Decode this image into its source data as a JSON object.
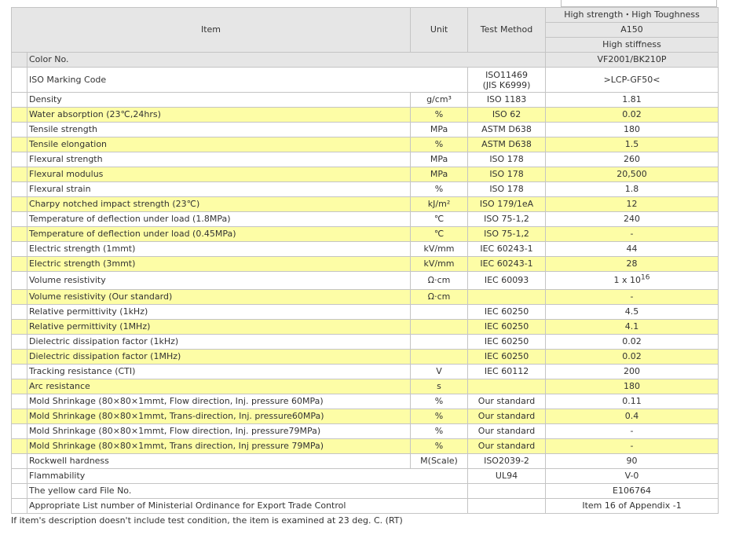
{
  "header": {
    "item": "Item",
    "unit": "Unit",
    "test_method": "Test Method",
    "grade_line1": "High strength・High Toughness",
    "grade_line2": "A150",
    "grade_line3": "High stiffness"
  },
  "color_row": {
    "label": "Color No.",
    "value": "VF2001/BK210P"
  },
  "iso_row": {
    "label": "ISO Marking Code",
    "method_line1": "ISO11469",
    "method_line2": "(JIS K6999)",
    "value": ">LCP-GF50<"
  },
  "rows": [
    {
      "label": "Density",
      "unit": "g/cm³",
      "method": "ISO 1183",
      "value": "1.81",
      "highlight": false
    },
    {
      "label": "Water absorption (23℃,24hrs)",
      "unit": "%",
      "method": "ISO 62",
      "value": "0.02",
      "highlight": true
    },
    {
      "label": "Tensile strength",
      "unit": "MPa",
      "method": "ASTM D638",
      "value": "180",
      "highlight": false
    },
    {
      "label": "Tensile elongation",
      "unit": "%",
      "method": "ASTM D638",
      "value": "1.5",
      "highlight": true
    },
    {
      "label": "Flexural strength",
      "unit": "MPa",
      "method": "ISO 178",
      "value": "260",
      "highlight": false
    },
    {
      "label": "Flexural modulus",
      "unit": "MPa",
      "method": "ISO 178",
      "value": "20,500",
      "highlight": true
    },
    {
      "label": "Flexural strain",
      "unit": "%",
      "method": "ISO 178",
      "value": "1.8",
      "highlight": false
    },
    {
      "label": "Charpy notched impact strength (23℃)",
      "unit": "kJ/m²",
      "method": "ISO 179/1eA",
      "value": "12",
      "highlight": true
    },
    {
      "label": "Temperature of deflection under load (1.8MPa)",
      "unit": "℃",
      "method": "ISO 75-1,2",
      "value": "240",
      "highlight": false
    },
    {
      "label": "Temperature of deflection under load (0.45MPa)",
      "unit": "℃",
      "method": "ISO 75-1,2",
      "value": "-",
      "highlight": true
    },
    {
      "label": "Electric strength (1mmt)",
      "unit": "kV/mm",
      "method": "IEC 60243-1",
      "value": "44",
      "highlight": false
    },
    {
      "label": "Electric strength (3mmt)",
      "unit": "kV/mm",
      "method": "IEC 60243-1",
      "value": "28",
      "highlight": true
    }
  ],
  "volume_resistivity": {
    "label": "Volume resistivity",
    "unit": "Ω·cm",
    "method": "IEC 60093",
    "value_base": "1 x 10",
    "value_exp": "16"
  },
  "rows2": [
    {
      "label": "Volume resistivity (Our standard)",
      "unit": "Ω·cm",
      "method": "",
      "value": "-",
      "highlight": true
    },
    {
      "label": "Relative permittivity (1kHz)",
      "unit": "",
      "method": "IEC 60250",
      "value": "4.5",
      "highlight": false
    },
    {
      "label": "Relative permittivity (1MHz)",
      "unit": "",
      "method": "IEC 60250",
      "value": "4.1",
      "highlight": true
    },
    {
      "label": "Dielectric dissipation factor (1kHz)",
      "unit": "",
      "method": "IEC 60250",
      "value": "0.02",
      "highlight": false
    },
    {
      "label": "Dielectric dissipation factor (1MHz)",
      "unit": "",
      "method": "IEC 60250",
      "value": "0.02",
      "highlight": true
    },
    {
      "label": "Tracking resistance (CTI)",
      "unit": "V",
      "method": "IEC 60112",
      "value": "200",
      "highlight": false
    },
    {
      "label": "Arc resistance",
      "unit": "s",
      "method": "",
      "value": "180",
      "highlight": true
    },
    {
      "label": "Mold Shrinkage (80×80×1mmt, Flow direction, Inj. pressure 60MPa)",
      "unit": "%",
      "method": "Our standard",
      "value": "0.11",
      "highlight": false
    },
    {
      "label": "Mold Shrinkage (80×80×1mmt, Trans-direction, Inj. pressure60MPa)",
      "unit": "%",
      "method": "Our standard",
      "value": "0.4",
      "highlight": true
    },
    {
      "label": "Mold Shrinkage (80×80×1mmt, Flow direction, Inj. pressure79MPa)",
      "unit": "%",
      "method": "Our standard",
      "value": "-",
      "highlight": false
    },
    {
      "label": "Mold Shrinkage (80×80×1mmt, Trans direction, Inj pressure 79MPa)",
      "unit": "%",
      "method": "Our standard",
      "value": "-",
      "highlight": true
    },
    {
      "label": "Rockwell hardness",
      "unit": "M(Scale)",
      "method": "ISO2039-2",
      "value": "90",
      "highlight": false
    }
  ],
  "span_rows": [
    {
      "label": "Flammability",
      "method": "UL94",
      "value": "V-0"
    },
    {
      "label": "The yellow card File No.",
      "method": "",
      "value": "E106764"
    },
    {
      "label": "Appropriate List number of Ministerial Ordinance for Export Trade Control",
      "method": "",
      "value": "Item 16 of Appendix -1"
    }
  ],
  "footnote": "If item's description doesn't include test condition, the item is examined at 23 deg. C. (RT)"
}
